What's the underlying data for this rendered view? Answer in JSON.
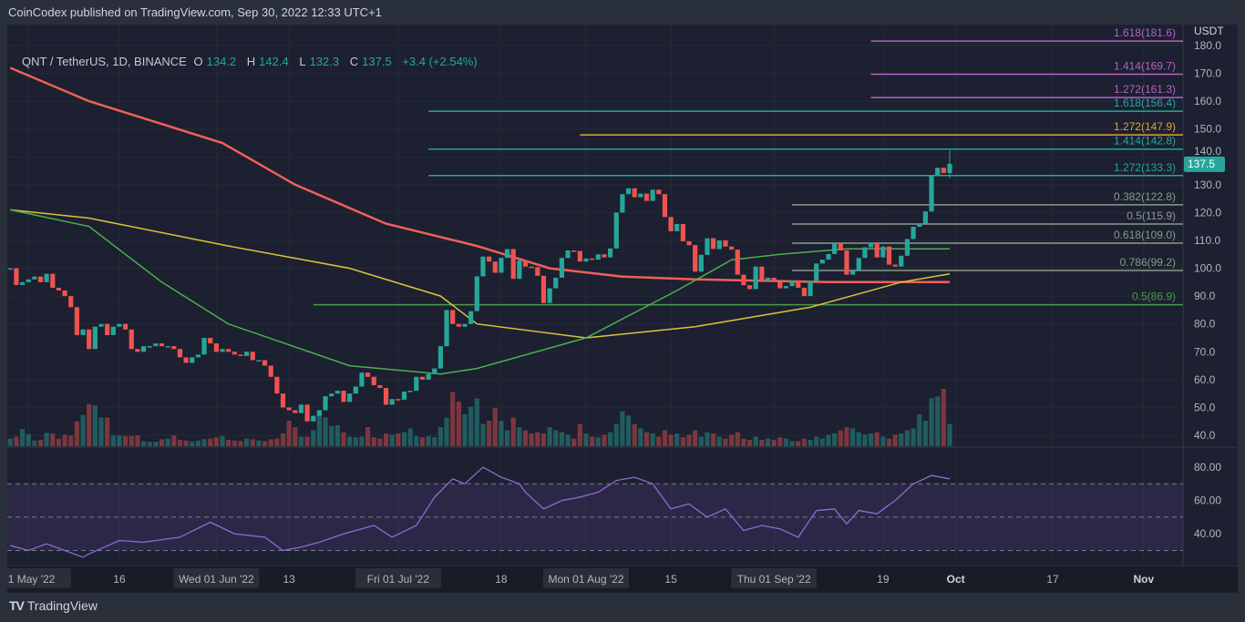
{
  "publisher_line": "CoinCodex published on TradingView.com, Sep 30, 2022 12:33 UTC+1",
  "legend": {
    "symbol": "QNT / TetherUS, 1D, BINANCE",
    "o_label": "O",
    "o": "134.2",
    "h_label": "H",
    "h": "142.4",
    "l_label": "L",
    "l": "132.3",
    "c_label": "C",
    "c": "137.5",
    "change": "+3.4 (+2.54%)"
  },
  "brand": "TradingView",
  "colors": {
    "up": "#26a69a",
    "down": "#ef5350",
    "ma200": "#f0605a",
    "ma100": "#d9c43a",
    "ma50": "#4caf50",
    "rsi": "#8e6bd1",
    "fib_ext_purple": "#b163c4",
    "fib_teal": "#26a69a",
    "fib_orange": "#e3a233",
    "fib_gray": "#8a9a8c",
    "fib_green": "#4c9a4c"
  },
  "chart_data": [
    {
      "type": "candlestick",
      "title": "QNT / TetherUS, 1D, BINANCE",
      "ylabel": "USDT",
      "ylim": [
        40,
        182
      ],
      "last_date": "2022-09-30",
      "last_price_label": "137.5",
      "last_candle": {
        "open": 134.2,
        "high": 142.4,
        "low": 132.3,
        "close": 137.5
      },
      "price_ticks": [
        "40.0",
        "50.0",
        "60.0",
        "70.0",
        "80.0",
        "90.0",
        "100.0",
        "110.0",
        "120.0",
        "130.0",
        "140.0",
        "150.0",
        "160.0",
        "170.0",
        "180.0"
      ],
      "closes": [
        100,
        94,
        95,
        96,
        97,
        95,
        98,
        93,
        92,
        90,
        86,
        76,
        78,
        71,
        79,
        80,
        76,
        79,
        80,
        78,
        71,
        70,
        72,
        72,
        73,
        72,
        72,
        71,
        68,
        66,
        68,
        69,
        75,
        73,
        70,
        71,
        70,
        69,
        68.5,
        70,
        67,
        67,
        65,
        61,
        55,
        50,
        49,
        48,
        51,
        45,
        47,
        49,
        54,
        55,
        56,
        52,
        55,
        57.5,
        62.5,
        61,
        58,
        57,
        51,
        53,
        52.8,
        55.7,
        56,
        61,
        60,
        62,
        64,
        72,
        85,
        80,
        79,
        80,
        84.6,
        97.1,
        104.2,
        102.4,
        98.4,
        103.7,
        106.9,
        96.2,
        102.8,
        100.6,
        100.4,
        97.3,
        87.5,
        92.8,
        96.6,
        103.7,
        106.4,
        106.2,
        102.4,
        103.5,
        103.1,
        105,
        103.9,
        107.1,
        120,
        126.6,
        128.7,
        125.5,
        126.8,
        124.2,
        128.2,
        126.6,
        118.4,
        113.3,
        115.9,
        109.7,
        108.3,
        98.8,
        104.8,
        110.8,
        106.9,
        110,
        107.8,
        106.7,
        97.7,
        93.9,
        92.5,
        100.6,
        95.5,
        96.6,
        95.2,
        92.8,
        93.6,
        95.5,
        93,
        90,
        95.5,
        101.7,
        103.1,
        105.1,
        108.9,
        106.4,
        97.7,
        99,
        103.7,
        107.5,
        109.3,
        103.9,
        107.8,
        101.3,
        100.6,
        104.5,
        110.5,
        114.9,
        116,
        120.4,
        133.3,
        136.1,
        134.2,
        137.5
      ],
      "volume_relative": [
        12,
        15,
        27,
        19,
        9,
        10,
        21,
        20,
        12,
        18,
        17,
        39,
        49,
        66,
        64,
        45,
        45,
        17,
        17,
        16,
        16,
        17,
        8,
        7,
        7,
        11,
        12,
        17,
        10,
        9,
        7,
        9,
        11,
        12,
        14,
        16,
        10,
        9,
        8,
        12,
        11,
        9,
        8,
        11,
        12,
        20,
        40,
        30,
        15,
        15,
        25,
        50,
        45,
        32,
        33,
        22,
        15,
        14,
        15,
        30,
        14,
        12,
        20,
        18,
        20,
        22,
        28,
        16,
        14,
        16,
        14,
        30,
        45,
        85,
        70,
        50,
        62,
        75,
        35,
        40,
        60,
        40,
        25,
        45,
        30,
        25,
        20,
        22,
        20,
        30,
        25,
        22,
        18,
        12,
        35,
        20,
        15,
        14,
        18,
        22,
        35,
        55,
        48,
        35,
        28,
        22,
        20,
        15,
        25,
        18,
        20,
        14,
        18,
        25,
        15,
        22,
        20,
        15,
        12,
        18,
        22,
        12,
        10,
        15,
        10,
        12,
        10,
        14,
        12,
        8,
        8,
        12,
        10,
        15,
        12,
        18,
        20,
        25,
        30,
        28,
        22,
        18,
        20,
        22,
        15,
        12,
        18,
        20,
        25,
        28,
        50,
        40,
        75,
        78,
        90,
        35
      ],
      "moving_averages": [
        {
          "color_key": "ma200",
          "points": [
            [
              "2022-04-28",
              172
            ],
            [
              "2022-05-11",
              160
            ],
            [
              "2022-06-02",
              145
            ],
            [
              "2022-06-14",
              130
            ],
            [
              "2022-06-29",
              116
            ],
            [
              "2022-07-14",
              108
            ],
            [
              "2022-07-26",
              100
            ],
            [
              "2022-08-07",
              97
            ],
            [
              "2022-08-19",
              96
            ],
            [
              "2022-09-10",
              95
            ],
            [
              "2022-09-30",
              95
            ]
          ]
        },
        {
          "color_key": "ma100",
          "points": [
            [
              "2022-04-28",
              121
            ],
            [
              "2022-05-11",
              118
            ],
            [
              "2022-06-03",
              108
            ],
            [
              "2022-06-23",
              100
            ],
            [
              "2022-07-08",
              90
            ],
            [
              "2022-07-14",
              80
            ],
            [
              "2022-08-01",
              75
            ],
            [
              "2022-08-19",
              79
            ],
            [
              "2022-09-07",
              86
            ],
            [
              "2022-09-22",
              95
            ],
            [
              "2022-09-30",
              98
            ]
          ]
        },
        {
          "color_key": "ma50",
          "points": [
            [
              "2022-04-28",
              121
            ],
            [
              "2022-05-11",
              115
            ],
            [
              "2022-05-23",
              95
            ],
            [
              "2022-06-03",
              80
            ],
            [
              "2022-06-23",
              65
            ],
            [
              "2022-07-08",
              62
            ],
            [
              "2022-07-14",
              64
            ],
            [
              "2022-08-01",
              75
            ],
            [
              "2022-08-16",
              92
            ],
            [
              "2022-08-25",
              103
            ],
            [
              "2022-09-02",
              105
            ],
            [
              "2022-09-13",
              107
            ],
            [
              "2022-09-30",
              107
            ]
          ]
        }
      ],
      "fib_levels": [
        {
          "label": "1.618(181.6)",
          "price": 181.6,
          "from": "2022-09-17",
          "color_key": "fib_ext_purple"
        },
        {
          "label": "1.414(169.7)",
          "price": 169.7,
          "from": "2022-09-17",
          "color_key": "fib_ext_purple"
        },
        {
          "label": "1.272(161.3)",
          "price": 161.3,
          "from": "2022-09-17",
          "color_key": "fib_ext_purple"
        },
        {
          "label": "1.618(156.4)",
          "price": 156.4,
          "from": "2022-07-06",
          "color_key": "fib_teal"
        },
        {
          "label": "1.272(147.9)",
          "price": 147.9,
          "from": "2022-07-31",
          "color_key": "fib_orange"
        },
        {
          "label": "1.414(142.8)",
          "price": 142.8,
          "from": "2022-07-06",
          "color_key": "fib_teal"
        },
        {
          "label": "1.272(133.3)",
          "price": 133.3,
          "from": "2022-07-06",
          "color_key": "fib_teal"
        },
        {
          "label": "0.382(122.8)",
          "price": 122.8,
          "from": "2022-09-04",
          "color_key": "fib_gray"
        },
        {
          "label": "0.5(115.9)",
          "price": 115.9,
          "from": "2022-09-04",
          "color_key": "fib_gray"
        },
        {
          "label": "0.618(109.0)",
          "price": 109.0,
          "from": "2022-09-04",
          "color_key": "fib_gray"
        },
        {
          "label": "0.786(99.2)",
          "price": 99.2,
          "from": "2022-09-04",
          "color_key": "fib_gray"
        },
        {
          "label": "0.5(86.9)",
          "price": 86.9,
          "from": "2022-06-17",
          "color_key": "fib_green"
        }
      ],
      "time_ticks": [
        {
          "date": "2022-05-01",
          "label": "01 May '22",
          "highlight": true
        },
        {
          "date": "2022-05-16",
          "label": "16"
        },
        {
          "date": "2022-06-01",
          "label": "Wed 01 Jun '22",
          "highlight": true
        },
        {
          "date": "2022-06-13",
          "label": "13"
        },
        {
          "date": "2022-07-01",
          "label": "Fri 01 Jul '22",
          "highlight": true
        },
        {
          "date": "2022-07-18",
          "label": "18"
        },
        {
          "date": "2022-08-01",
          "label": "Mon 01 Aug '22",
          "highlight": true
        },
        {
          "date": "2022-08-15",
          "label": "15"
        },
        {
          "date": "2022-09-01",
          "label": "Thu 01 Sep '22",
          "highlight": true
        },
        {
          "date": "2022-09-19",
          "label": "19"
        },
        {
          "date": "2022-10-01",
          "label": "Oct",
          "bold": true
        },
        {
          "date": "2022-10-17",
          "label": "17"
        },
        {
          "date": "2022-11-01",
          "label": "Nov",
          "bold": true
        }
      ]
    },
    {
      "type": "line",
      "title": "RSI",
      "ylim": [
        20,
        90
      ],
      "bands": [
        70,
        50,
        30
      ],
      "ticks": [
        "80.00",
        "60.00",
        "40.00"
      ],
      "points": [
        [
          "2022-04-28",
          33
        ],
        [
          "2022-05-01",
          30
        ],
        [
          "2022-05-04",
          34
        ],
        [
          "2022-05-07",
          30
        ],
        [
          "2022-05-10",
          26
        ],
        [
          "2022-05-11",
          28
        ],
        [
          "2022-05-16",
          36
        ],
        [
          "2022-05-20",
          35
        ],
        [
          "2022-05-26",
          38
        ],
        [
          "2022-05-31",
          47
        ],
        [
          "2022-06-04",
          40
        ],
        [
          "2022-06-09",
          38
        ],
        [
          "2022-06-12",
          30
        ],
        [
          "2022-06-15",
          32
        ],
        [
          "2022-06-18",
          35
        ],
        [
          "2022-06-22",
          40
        ],
        [
          "2022-06-27",
          45
        ],
        [
          "2022-06-30",
          38
        ],
        [
          "2022-07-04",
          45
        ],
        [
          "2022-07-07",
          62
        ],
        [
          "2022-07-10",
          73
        ],
        [
          "2022-07-12",
          70
        ],
        [
          "2022-07-15",
          80
        ],
        [
          "2022-07-18",
          74
        ],
        [
          "2022-07-21",
          70
        ],
        [
          "2022-07-22",
          65
        ],
        [
          "2022-07-25",
          55
        ],
        [
          "2022-07-28",
          60
        ],
        [
          "2022-07-31",
          62
        ],
        [
          "2022-08-03",
          65
        ],
        [
          "2022-08-06",
          72
        ],
        [
          "2022-08-09",
          74
        ],
        [
          "2022-08-12",
          70
        ],
        [
          "2022-08-15",
          55
        ],
        [
          "2022-08-18",
          58
        ],
        [
          "2022-08-21",
          50
        ],
        [
          "2022-08-24",
          55
        ],
        [
          "2022-08-27",
          42
        ],
        [
          "2022-08-30",
          45
        ],
        [
          "2022-09-02",
          43
        ],
        [
          "2022-09-05",
          38
        ],
        [
          "2022-09-08",
          54
        ],
        [
          "2022-09-11",
          55
        ],
        [
          "2022-09-13",
          46
        ],
        [
          "2022-09-15",
          54
        ],
        [
          "2022-09-18",
          52
        ],
        [
          "2022-09-21",
          60
        ],
        [
          "2022-09-24",
          70
        ],
        [
          "2022-09-27",
          75
        ],
        [
          "2022-09-30",
          73
        ]
      ]
    }
  ]
}
